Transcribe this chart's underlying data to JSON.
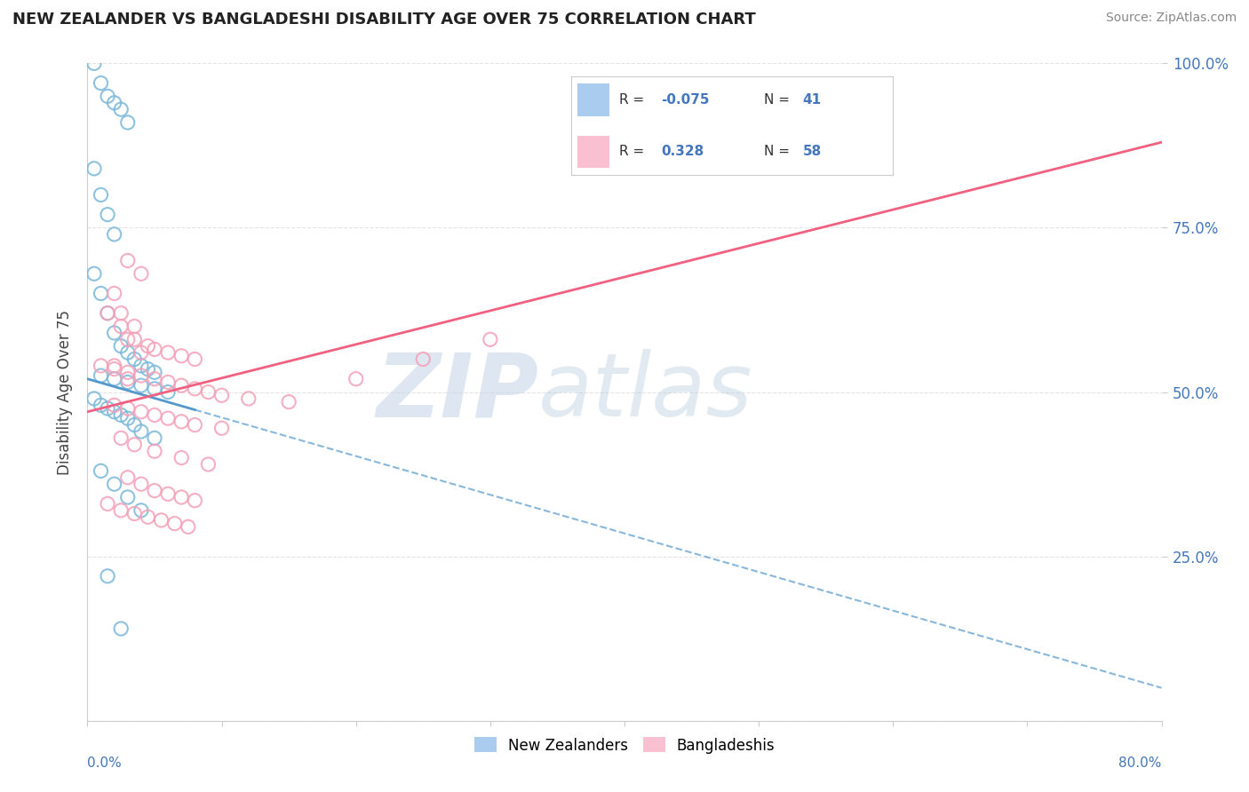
{
  "title": "NEW ZEALANDER VS BANGLADESHI DISABILITY AGE OVER 75 CORRELATION CHART",
  "source": "Source: ZipAtlas.com",
  "ylabel": "Disability Age Over 75",
  "nz_color": "#7ab8d9",
  "bd_color": "#f4a0b8",
  "nz_trend_color": "#5599cc",
  "bd_trend_color": "#f06080",
  "legend_nz_color": "#aaccee",
  "legend_bd_color": "#f8c0d0",
  "background": "#ffffff",
  "nz_R": -0.075,
  "bd_R": 0.328,
  "nz_N": 41,
  "bd_N": 58,
  "xmin": 0.0,
  "xmax": 80.0,
  "ymin": 0.0,
  "ymax": 100.0,
  "nz_x": [
    0.5,
    1.0,
    1.5,
    2.0,
    2.5,
    3.0,
    0.5,
    1.0,
    1.5,
    2.0,
    0.5,
    1.0,
    1.5,
    2.0,
    2.5,
    3.0,
    3.5,
    4.0,
    4.5,
    5.0,
    1.0,
    2.0,
    3.0,
    4.0,
    5.0,
    6.0,
    0.5,
    1.0,
    1.5,
    2.0,
    2.5,
    3.0,
    3.5,
    4.0,
    5.0,
    1.0,
    2.0,
    3.0,
    4.0,
    1.5,
    2.5
  ],
  "nz_y": [
    100.0,
    97.0,
    95.0,
    94.0,
    93.0,
    91.0,
    84.0,
    80.0,
    77.0,
    74.0,
    68.0,
    65.0,
    62.0,
    59.0,
    57.0,
    56.0,
    55.0,
    54.0,
    53.5,
    53.0,
    52.5,
    52.0,
    51.5,
    51.0,
    50.5,
    50.0,
    49.0,
    48.0,
    47.5,
    47.0,
    46.5,
    46.0,
    45.0,
    44.0,
    43.0,
    38.0,
    36.0,
    34.0,
    32.0,
    22.0,
    14.0
  ],
  "bd_x": [
    3.0,
    4.0,
    2.0,
    2.5,
    3.5,
    3.0,
    4.0,
    2.0,
    3.0,
    1.5,
    2.5,
    3.5,
    4.5,
    5.0,
    6.0,
    7.0,
    8.0,
    1.0,
    2.0,
    3.0,
    4.0,
    5.0,
    6.0,
    7.0,
    8.0,
    9.0,
    10.0,
    12.0,
    15.0,
    2.0,
    3.0,
    4.0,
    5.0,
    6.0,
    7.0,
    8.0,
    10.0,
    2.5,
    3.5,
    5.0,
    7.0,
    9.0,
    20.0,
    25.0,
    30.0,
    3.0,
    4.0,
    5.0,
    6.0,
    7.0,
    8.0,
    1.5,
    2.5,
    3.5,
    4.5,
    5.5,
    6.5,
    7.5
  ],
  "bd_y": [
    70.0,
    68.0,
    65.0,
    62.0,
    60.0,
    58.0,
    56.0,
    54.0,
    52.0,
    62.0,
    60.0,
    58.0,
    57.0,
    56.5,
    56.0,
    55.5,
    55.0,
    54.0,
    53.5,
    53.0,
    52.5,
    52.0,
    51.5,
    51.0,
    50.5,
    50.0,
    49.5,
    49.0,
    48.5,
    48.0,
    47.5,
    47.0,
    46.5,
    46.0,
    45.5,
    45.0,
    44.5,
    43.0,
    42.0,
    41.0,
    40.0,
    39.0,
    52.0,
    55.0,
    58.0,
    37.0,
    36.0,
    35.0,
    34.5,
    34.0,
    33.5,
    33.0,
    32.0,
    31.5,
    31.0,
    30.5,
    30.0,
    29.5
  ]
}
